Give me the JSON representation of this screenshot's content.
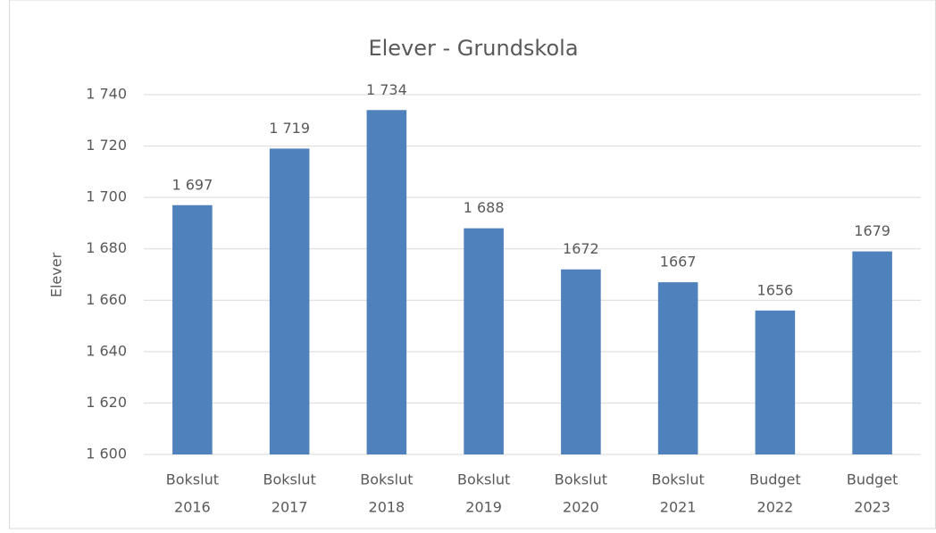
{
  "chart_data": {
    "type": "bar",
    "title": "Elever - Grundskola",
    "y_label": "Elever",
    "categories": [
      [
        "Bokslut",
        "2016"
      ],
      [
        "Bokslut",
        "2017"
      ],
      [
        "Bokslut",
        "2018"
      ],
      [
        "Bokslut",
        "2019"
      ],
      [
        "Bokslut",
        "2020"
      ],
      [
        "Bokslut",
        "2021"
      ],
      [
        "Budget",
        "2022"
      ],
      [
        "Budget",
        "2023"
      ]
    ],
    "values": [
      1697,
      1719,
      1734,
      1688,
      1672,
      1667,
      1656,
      1679
    ],
    "value_labels": [
      "1 697",
      "1 719",
      "1 734",
      "1 688",
      "1672",
      "1667",
      "1656",
      "1679"
    ],
    "color": "#4f81bd",
    "ylim": [
      1600,
      1740
    ],
    "yticks": [
      {
        "value": 1600,
        "label": "1 600"
      },
      {
        "value": 1620,
        "label": "1 620"
      },
      {
        "value": 1640,
        "label": "1 640"
      },
      {
        "value": 1660,
        "label": "1 660"
      },
      {
        "value": 1680,
        "label": "1 680"
      },
      {
        "value": 1700,
        "label": "1 700"
      },
      {
        "value": 1720,
        "label": "1 720"
      },
      {
        "value": 1740,
        "label": "1 740"
      }
    ],
    "grid": true
  }
}
